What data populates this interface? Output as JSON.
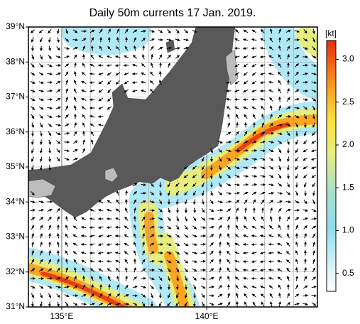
{
  "title": "Daily 50m currents 17 Jan. 2019.",
  "map": {
    "lonlim": [
      133.85,
      143.82
    ],
    "latlim": [
      31,
      39
    ],
    "lat_ticks": [
      {
        "value": 31,
        "label": "31°N"
      },
      {
        "value": 32,
        "label": "32°N"
      },
      {
        "value": 33,
        "label": "33°N"
      },
      {
        "value": 34,
        "label": "34°N"
      },
      {
        "value": 35,
        "label": "35°N"
      },
      {
        "value": 36,
        "label": "36°N"
      },
      {
        "value": 37,
        "label": "37°N"
      },
      {
        "value": 38,
        "label": "38°N"
      },
      {
        "value": 39,
        "label": "39°N"
      }
    ],
    "lon_ticks": [
      {
        "value": 135,
        "label": "135°E"
      },
      {
        "value": 140,
        "label": "140°E"
      }
    ]
  },
  "colorbar": {
    "unit": "[kt]",
    "lim": [
      0.29,
      3.22
    ],
    "ticks": [
      0.5,
      {
        "value": 1,
        "label": "1.0"
      },
      1.5,
      {
        "value": 2,
        "label": "2.0"
      },
      2.5,
      {
        "value": 3,
        "label": "3.0"
      }
    ]
  }
}
